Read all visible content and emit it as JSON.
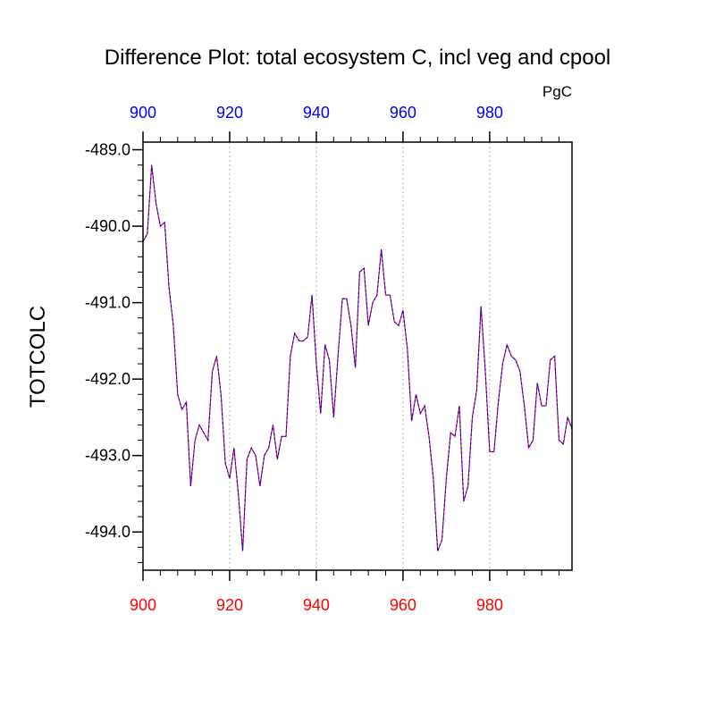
{
  "chart_data": {
    "type": "line",
    "title": "Difference Plot: total ecosystem C, incl veg and cpool",
    "units": "PgC",
    "xlabel": "",
    "ylabel": "TOTCOLC",
    "xlim": [
      900,
      999
    ],
    "ylim": [
      -494.5,
      -488.9
    ],
    "x_ticks": [
      900,
      920,
      940,
      960,
      980
    ],
    "x_tick_labels": [
      "900",
      "920",
      "940",
      "960",
      "980"
    ],
    "top_tick_labels": [
      "900",
      "920",
      "940",
      "960",
      "980"
    ],
    "y_ticks": [
      -489.0,
      -490.0,
      -491.0,
      -492.0,
      -493.0,
      -494.0
    ],
    "y_tick_labels": [
      "-489.0",
      "-490.0",
      "-491.0",
      "-492.0",
      "-493.0",
      "-494.0"
    ],
    "grid": "vertical dotted at major x ticks",
    "colors": {
      "bottom_ticks": "#ff0000",
      "top_ticks": "#0000ff",
      "series_1": "#ff0000",
      "series_2": "#0000ff",
      "grid": "#b0b0b0"
    },
    "x": [
      900,
      901,
      902,
      903,
      904,
      905,
      906,
      907,
      908,
      909,
      910,
      911,
      912,
      913,
      914,
      915,
      916,
      917,
      918,
      919,
      920,
      921,
      922,
      923,
      924,
      925,
      926,
      927,
      928,
      929,
      930,
      931,
      932,
      933,
      934,
      935,
      936,
      937,
      938,
      939,
      940,
      941,
      942,
      943,
      944,
      945,
      946,
      947,
      948,
      949,
      950,
      951,
      952,
      953,
      954,
      955,
      956,
      957,
      958,
      959,
      960,
      961,
      962,
      963,
      964,
      965,
      966,
      967,
      968,
      969,
      970,
      971,
      972,
      973,
      974,
      975,
      976,
      977,
      978,
      979,
      980,
      981,
      982,
      983,
      984,
      985,
      986,
      987,
      988,
      989,
      990,
      991,
      992,
      993,
      994,
      995,
      996,
      997,
      998,
      999
    ],
    "series": [
      {
        "values": [
          -490.2,
          -490.1,
          -489.2,
          -489.7,
          -490.0,
          -489.95,
          -490.8,
          -491.3,
          -492.2,
          -492.4,
          -492.3,
          -493.4,
          -492.8,
          -492.6,
          -492.7,
          -492.8,
          -491.9,
          -491.7,
          -492.2,
          -493.1,
          -493.3,
          -492.9,
          -493.5,
          -494.25,
          -493.05,
          -492.9,
          -493.0,
          -493.4,
          -493.0,
          -492.9,
          -492.6,
          -493.05,
          -492.75,
          -492.75,
          -491.7,
          -491.4,
          -491.5,
          -491.5,
          -491.45,
          -490.9,
          -491.8,
          -492.45,
          -491.55,
          -491.75,
          -492.5,
          -491.7,
          -490.95,
          -490.95,
          -491.3,
          -491.85,
          -490.6,
          -490.55,
          -491.3,
          -491.0,
          -490.9,
          -490.3,
          -490.9,
          -490.9,
          -491.25,
          -491.3,
          -491.1,
          -491.6,
          -492.55,
          -492.2,
          -492.45,
          -492.35,
          -492.75,
          -493.3,
          -494.25,
          -494.1,
          -493.3,
          -492.7,
          -492.75,
          -492.35,
          -493.6,
          -493.4,
          -492.5,
          -492.15,
          -491.05,
          -491.9,
          -492.95,
          -492.95,
          -492.3,
          -491.8,
          -491.55,
          -491.7,
          -491.75,
          -491.9,
          -492.35,
          -492.9,
          -492.8,
          -492.05,
          -492.35,
          -492.35,
          -491.75,
          -491.7,
          -492.8,
          -492.85,
          -492.5,
          -492.65
        ]
      }
    ]
  }
}
